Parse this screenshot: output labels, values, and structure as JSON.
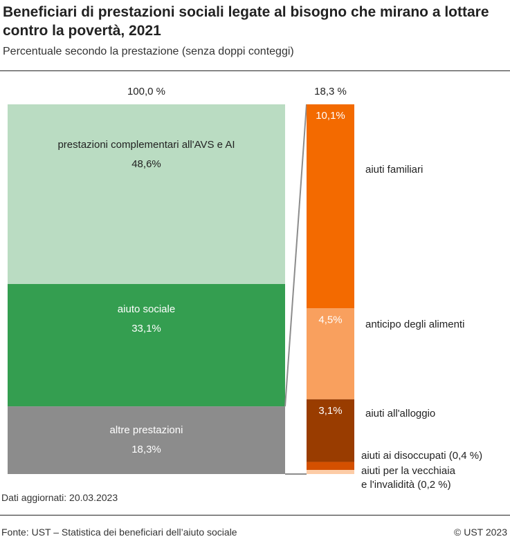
{
  "chart_data": {
    "type": "bar-of-bar",
    "title": "Beneficiari di prestazioni sociali legate al bisogno che mirano a lottare contro la povertà, 2021",
    "subtitle": "Percentuale secondo la prestazione (senza doppi conteggi)",
    "main_total_label": "100,0 %",
    "detail_total_label": "18,3 %",
    "main": [
      {
        "name": "prestazioni complementari all'AVS e AI",
        "value": 48.6,
        "label": "48,6%",
        "color": "#badcc2",
        "text_color": "#222222"
      },
      {
        "name": "aiuto sociale",
        "value": 33.1,
        "label": "33,1%",
        "color": "#349e50",
        "text_color": "#ffffff"
      },
      {
        "name": "altre prestazioni",
        "value": 18.3,
        "label": "18,3%",
        "color": "#8c8c8c",
        "text_color": "#ffffff"
      }
    ],
    "detail": [
      {
        "name": "aiuti familiari",
        "value": 10.1,
        "label": "10,1%",
        "color": "#f36a00"
      },
      {
        "name": "anticipo degli alimenti",
        "value": 4.5,
        "label": "4,5%",
        "color": "#f9a05e"
      },
      {
        "name": "aiuti all'alloggio",
        "value": 3.1,
        "label": "3,1%",
        "color": "#993c00"
      },
      {
        "name": "aiuti ai disoccupati (0,4 %)",
        "value": 0.4,
        "label": "",
        "color": "#d45000"
      },
      {
        "name": "aiuti per la vecchiaia e l'invalidità (0,2 %)",
        "value": 0.2,
        "label": "",
        "color": "#fdcca6"
      }
    ]
  },
  "footer": {
    "updated": "Dati aggiornati: 20.03.2023",
    "source": "Fonte: UST – Statistica dei beneficiari dell’aiuto sociale",
    "copyright": "© UST 2023"
  }
}
